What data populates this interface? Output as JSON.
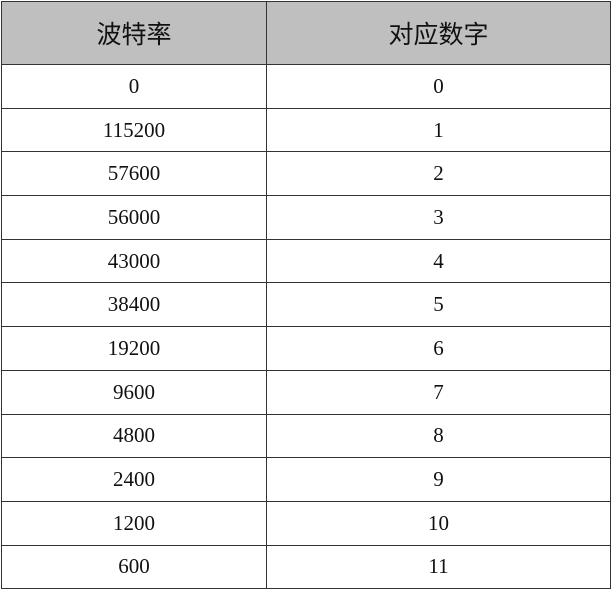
{
  "table": {
    "headers": [
      "波特率",
      "对应数字"
    ],
    "header_bg": "#bfbfbf",
    "rows": [
      [
        "0",
        "0"
      ],
      [
        "115200",
        "1"
      ],
      [
        "57600",
        "2"
      ],
      [
        "56000",
        "3"
      ],
      [
        "43000",
        "4"
      ],
      [
        "38400",
        "5"
      ],
      [
        "19200",
        "6"
      ],
      [
        "9600",
        "7"
      ],
      [
        "4800",
        "8"
      ],
      [
        "2400",
        "9"
      ],
      [
        "1200",
        "10"
      ],
      [
        "600",
        "11"
      ]
    ]
  }
}
